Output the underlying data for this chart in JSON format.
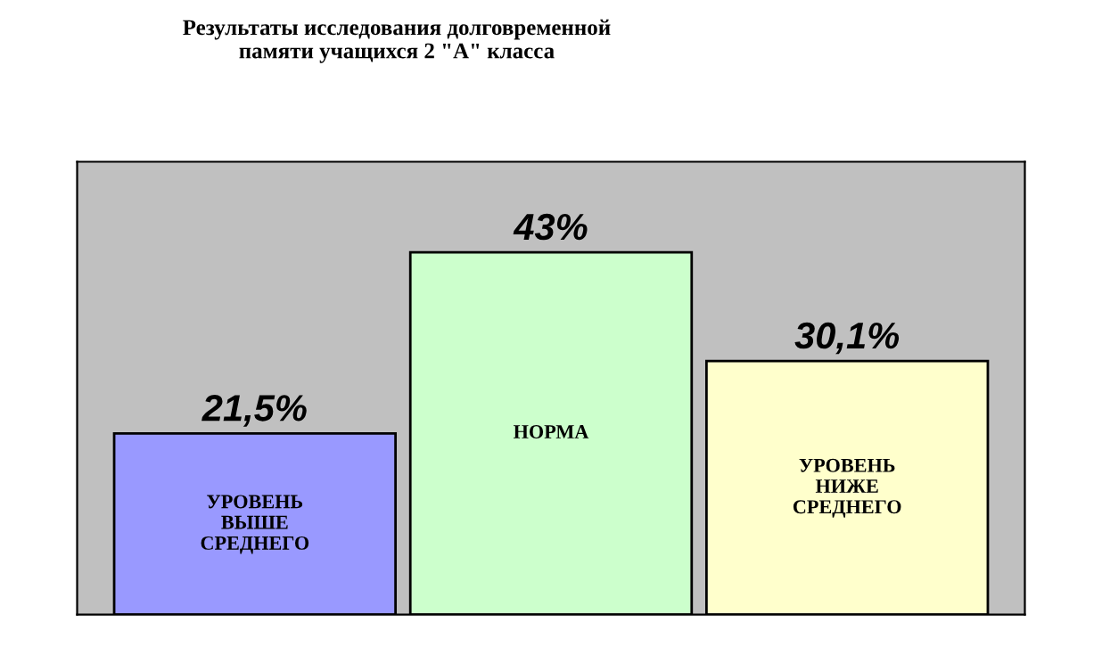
{
  "chart_data": {
    "type": "bar",
    "title": "Результаты исследования долговременной\nпамяти учащихся 2 \"А\" класса",
    "categories": [
      "УРОВЕНЬ\nВЫШЕ\nСРЕДНЕГО",
      "НОРМА",
      "УРОВЕНЬ\nНИЖЕ\nСРЕДНЕГО"
    ],
    "values": [
      21.5,
      43,
      30.1
    ],
    "colors": [
      "#9999ff",
      "#ccffcc",
      "#ffffcc"
    ],
    "value_labels": [
      "21,5%",
      "43%",
      "30,1%"
    ]
  }
}
